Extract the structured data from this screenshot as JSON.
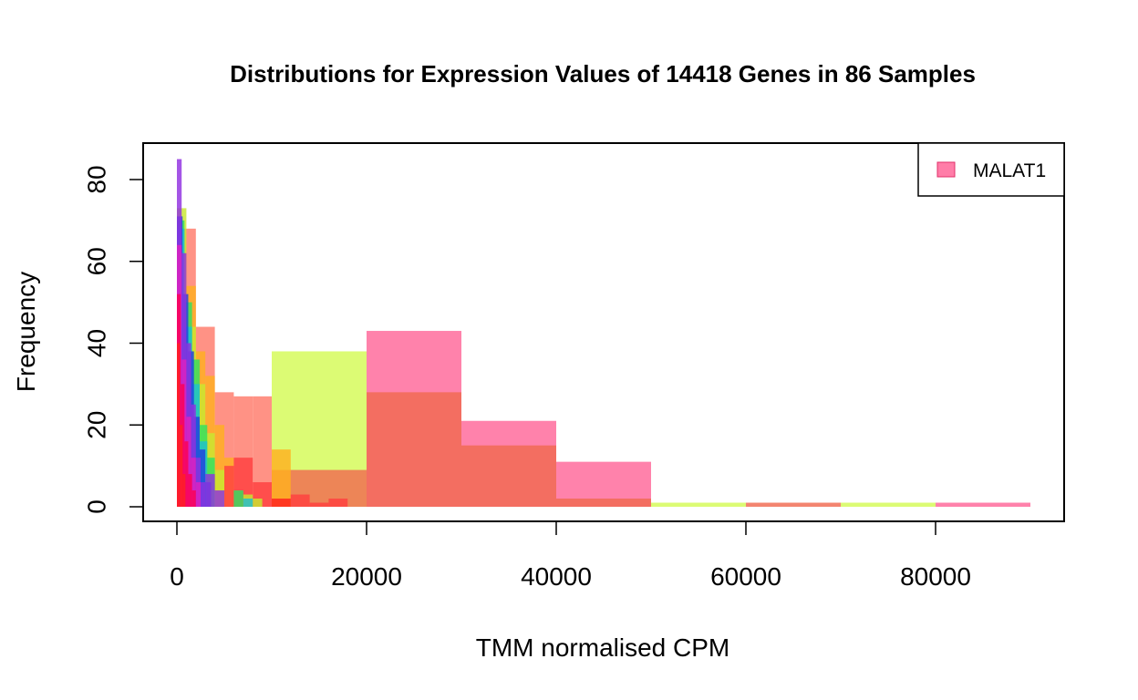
{
  "chart_data": {
    "type": "bar",
    "title": "Distributions for Expression Values of 14418 Genes in 86 Samples",
    "xlabel": "TMM normalised CPM",
    "ylabel": "Frequency",
    "xlim": [
      0,
      93000
    ],
    "ylim": [
      0,
      85
    ],
    "x_ticks": [
      0,
      20000,
      40000,
      60000,
      80000
    ],
    "y_ticks": [
      0,
      20,
      40,
      60,
      80
    ],
    "x_tick_labels": [
      "0",
      "20000",
      "40000",
      "60000",
      "80000"
    ],
    "y_tick_labels": [
      "0",
      "20",
      "40",
      "60",
      "80"
    ],
    "legend": {
      "position": "top-right",
      "entries": [
        {
          "label": "MALAT1",
          "color": "#ff6699"
        }
      ]
    },
    "series": [
      {
        "color": "#ff6699",
        "bins": [
          {
            "x0": 20000,
            "x1": 30000,
            "count": 43
          },
          {
            "x0": 30000,
            "x1": 40000,
            "count": 21
          },
          {
            "x0": 40000,
            "x1": 50000,
            "count": 11
          },
          {
            "x0": 80000,
            "x1": 90000,
            "count": 1
          }
        ]
      },
      {
        "color": "#d4fa55",
        "bins": [
          {
            "x0": 10000,
            "x1": 20000,
            "count": 38
          },
          {
            "x0": 50000,
            "x1": 60000,
            "count": 1
          },
          {
            "x0": 70000,
            "x1": 80000,
            "count": 1
          }
        ]
      },
      {
        "color": "#f06a50",
        "bins": [
          {
            "x0": 10000,
            "x1": 20000,
            "count": 9
          },
          {
            "x0": 20000,
            "x1": 30000,
            "count": 28
          },
          {
            "x0": 30000,
            "x1": 40000,
            "count": 15
          },
          {
            "x0": 40000,
            "x1": 50000,
            "count": 2
          },
          {
            "x0": 60000,
            "x1": 70000,
            "count": 1
          }
        ]
      },
      {
        "color": "#ff7a6a",
        "bins": [
          {
            "x0": 0,
            "x1": 2000,
            "count": 68
          },
          {
            "x0": 2000,
            "x1": 4000,
            "count": 44
          },
          {
            "x0": 4000,
            "x1": 6000,
            "count": 28
          },
          {
            "x0": 6000,
            "x1": 8000,
            "count": 27
          },
          {
            "x0": 8000,
            "x1": 10000,
            "count": 27
          }
        ]
      },
      {
        "color": "#ffb020",
        "bins": [
          {
            "x0": 0,
            "x1": 1000,
            "count": 62
          },
          {
            "x0": 1000,
            "x1": 2000,
            "count": 54
          },
          {
            "x0": 2000,
            "x1": 3000,
            "count": 38
          },
          {
            "x0": 3000,
            "x1": 4000,
            "count": 32
          },
          {
            "x0": 4000,
            "x1": 5000,
            "count": 20
          },
          {
            "x0": 5000,
            "x1": 6000,
            "count": 12
          },
          {
            "x0": 10000,
            "x1": 12000,
            "count": 14
          }
        ]
      },
      {
        "color": "#ff4040",
        "bins": [
          {
            "x0": 5000,
            "x1": 6000,
            "count": 10
          },
          {
            "x0": 6000,
            "x1": 8000,
            "count": 12
          },
          {
            "x0": 8000,
            "x1": 10000,
            "count": 6
          },
          {
            "x0": 12000,
            "x1": 14000,
            "count": 3
          },
          {
            "x0": 14000,
            "x1": 16000,
            "count": 1
          },
          {
            "x0": 16000,
            "x1": 18000,
            "count": 2
          }
        ]
      },
      {
        "color": "#c8e830",
        "bins": [
          {
            "x0": 0,
            "x1": 1000,
            "count": 73
          },
          {
            "x0": 1000,
            "x1": 2000,
            "count": 44
          },
          {
            "x0": 2000,
            "x1": 3000,
            "count": 30
          },
          {
            "x0": 3000,
            "x1": 4000,
            "count": 18
          },
          {
            "x0": 4000,
            "x1": 5000,
            "count": 9
          },
          {
            "x0": 7000,
            "x1": 8000,
            "count": 3
          },
          {
            "x0": 8000,
            "x1": 9000,
            "count": 2
          }
        ]
      },
      {
        "color": "#30e060",
        "bins": [
          {
            "x0": 0,
            "x1": 800,
            "count": 70
          },
          {
            "x0": 800,
            "x1": 1600,
            "count": 50
          },
          {
            "x0": 1600,
            "x1": 2400,
            "count": 36
          },
          {
            "x0": 2400,
            "x1": 3200,
            "count": 20
          },
          {
            "x0": 3200,
            "x1": 4000,
            "count": 12
          },
          {
            "x0": 6000,
            "x1": 7000,
            "count": 4
          }
        ]
      },
      {
        "color": "#20c0d0",
        "bins": [
          {
            "x0": 0,
            "x1": 800,
            "count": 68
          },
          {
            "x0": 800,
            "x1": 1600,
            "count": 44
          },
          {
            "x0": 1600,
            "x1": 2400,
            "count": 30
          },
          {
            "x0": 2400,
            "x1": 3200,
            "count": 16
          },
          {
            "x0": 7000,
            "x1": 8000,
            "count": 2
          }
        ]
      },
      {
        "color": "#2040e0",
        "bins": [
          {
            "x0": 0,
            "x1": 600,
            "count": 71
          },
          {
            "x0": 600,
            "x1": 1200,
            "count": 52
          },
          {
            "x0": 1200,
            "x1": 1800,
            "count": 38
          },
          {
            "x0": 1800,
            "x1": 2400,
            "count": 22
          },
          {
            "x0": 2400,
            "x1": 3000,
            "count": 14
          },
          {
            "x0": 3000,
            "x1": 3600,
            "count": 6
          }
        ]
      },
      {
        "color": "#9030e0",
        "bins": [
          {
            "x0": 0,
            "x1": 500,
            "count": 85
          },
          {
            "x0": 500,
            "x1": 1000,
            "count": 62
          },
          {
            "x0": 1000,
            "x1": 1500,
            "count": 40
          },
          {
            "x0": 1500,
            "x1": 2000,
            "count": 25
          },
          {
            "x0": 2000,
            "x1": 2500,
            "count": 12
          },
          {
            "x0": 2500,
            "x1": 3000,
            "count": 6
          },
          {
            "x0": 3000,
            "x1": 4000,
            "count": 8
          },
          {
            "x0": 4000,
            "x1": 5000,
            "count": 4
          }
        ]
      },
      {
        "color": "#e020c0",
        "bins": [
          {
            "x0": 0,
            "x1": 500,
            "count": 64
          },
          {
            "x0": 500,
            "x1": 1000,
            "count": 36
          },
          {
            "x0": 1000,
            "x1": 1500,
            "count": 22
          },
          {
            "x0": 1500,
            "x1": 2000,
            "count": 12
          },
          {
            "x0": 2000,
            "x1": 2500,
            "count": 6
          }
        ]
      },
      {
        "color": "#ff0050",
        "bins": [
          {
            "x0": 0,
            "x1": 400,
            "count": 52
          },
          {
            "x0": 400,
            "x1": 800,
            "count": 30
          },
          {
            "x0": 800,
            "x1": 1200,
            "count": 16
          },
          {
            "x0": 1200,
            "x1": 1600,
            "count": 8
          },
          {
            "x0": 1600,
            "x1": 2000,
            "count": 4
          }
        ]
      },
      {
        "color": "#ff2020",
        "bins": [
          {
            "x0": 0,
            "x1": 300,
            "count": 40
          },
          {
            "x0": 300,
            "x1": 600,
            "count": 20
          },
          {
            "x0": 600,
            "x1": 900,
            "count": 8
          },
          {
            "x0": 10000,
            "x1": 12000,
            "count": 2
          }
        ]
      }
    ]
  }
}
